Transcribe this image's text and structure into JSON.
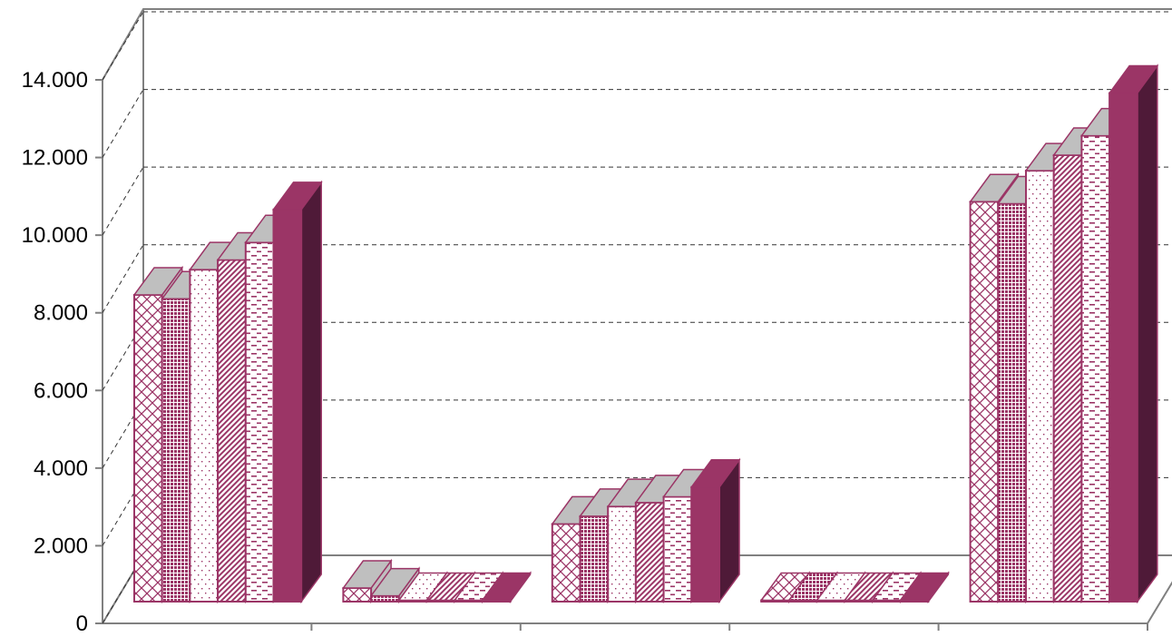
{
  "colors": {
    "bar": "#9b3566",
    "bar_dark": "#4f1a38",
    "bar_top": "#bfbfbf",
    "wall": "#808080",
    "grid": "#333333"
  },
  "chart_data": {
    "type": "bar",
    "three_d": true,
    "title": "",
    "xlabel": "",
    "ylabel": "",
    "categories": [
      "",
      "",
      "",
      "",
      ""
    ],
    "ylim": [
      0,
      14000
    ],
    "yticks": [
      0,
      2000,
      4000,
      6000,
      8000,
      10000,
      12000,
      14000
    ],
    "ytick_labels": [
      "0",
      "2.000",
      "4.000",
      "6.000",
      "8.000",
      "10.000",
      "12.000",
      "14.000"
    ],
    "grid": true,
    "legend": "none",
    "series": [
      {
        "pattern": "cross-hatch",
        "values": [
          7900,
          350,
          2000,
          0,
          10300
        ]
      },
      {
        "pattern": "dense-dots",
        "values": [
          7800,
          150,
          2200,
          0,
          10250
        ]
      },
      {
        "pattern": "sparse-dots",
        "values": [
          8550,
          30,
          2450,
          0,
          11100
        ]
      },
      {
        "pattern": "diagonal-stripes",
        "values": [
          8800,
          20,
          2550,
          0,
          11500
        ]
      },
      {
        "pattern": "dashes",
        "values": [
          9250,
          20,
          2700,
          0,
          12000
        ]
      },
      {
        "pattern": "solid",
        "values": [
          10100,
          30,
          2950,
          0,
          13100
        ]
      }
    ]
  }
}
